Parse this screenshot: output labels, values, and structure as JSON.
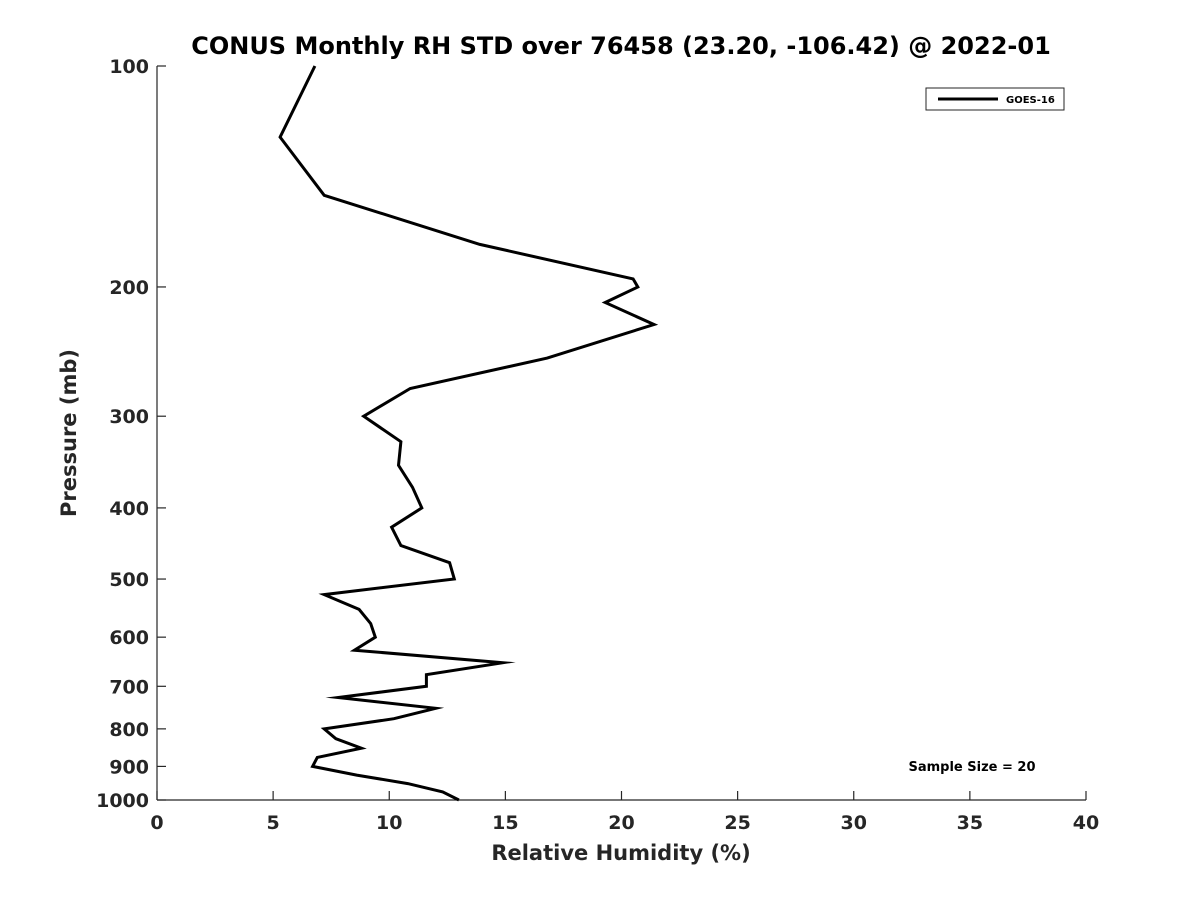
{
  "chart_data": {
    "type": "line",
    "title": "CONUS Monthly RH STD over 76458 (23.20, -106.42) @ 2022-01",
    "xlabel": "Relative Humidity (%)",
    "ylabel": "Pressure (mb)",
    "xlim": [
      0,
      40
    ],
    "ylim": [
      100,
      1000
    ],
    "yscale": "log",
    "y_reversed": true,
    "grid": false,
    "legend_position": "top-right",
    "xticks": [
      0,
      5,
      10,
      15,
      20,
      25,
      30,
      35,
      40
    ],
    "xtick_labels": [
      "0",
      "5",
      "10",
      "15",
      "20",
      "25",
      "30",
      "35",
      "40"
    ],
    "yticks": [
      100,
      200,
      300,
      400,
      500,
      600,
      700,
      800,
      900,
      1000
    ],
    "ytick_labels": [
      "100",
      "200",
      "300",
      "400",
      "500",
      "600",
      "700",
      "800",
      "900",
      "1000"
    ],
    "annotation": "Sample Size = 20",
    "series": [
      {
        "name": "GOES-16",
        "color": "#000000",
        "points": [
          [
            6.8,
            100
          ],
          [
            5.3,
            125
          ],
          [
            7.2,
            150
          ],
          [
            13.9,
            175
          ],
          [
            20.5,
            195
          ],
          [
            20.7,
            200
          ],
          [
            19.3,
            210
          ],
          [
            21.4,
            225
          ],
          [
            16.8,
            250
          ],
          [
            10.9,
            275
          ],
          [
            8.9,
            300
          ],
          [
            10.5,
            325
          ],
          [
            10.4,
            350
          ],
          [
            11.0,
            375
          ],
          [
            11.4,
            400
          ],
          [
            10.1,
            425
          ],
          [
            10.5,
            450
          ],
          [
            12.6,
            475
          ],
          [
            12.8,
            500
          ],
          [
            7.2,
            525
          ],
          [
            8.7,
            550
          ],
          [
            9.2,
            575
          ],
          [
            9.4,
            600
          ],
          [
            8.5,
            625
          ],
          [
            14.9,
            650
          ],
          [
            11.6,
            675
          ],
          [
            11.6,
            700
          ],
          [
            7.8,
            725
          ],
          [
            12.0,
            750
          ],
          [
            10.2,
            775
          ],
          [
            7.2,
            800
          ],
          [
            7.7,
            825
          ],
          [
            8.8,
            850
          ],
          [
            6.9,
            875
          ],
          [
            6.7,
            900
          ],
          [
            8.6,
            925
          ],
          [
            10.8,
            950
          ],
          [
            12.3,
            975
          ],
          [
            13.0,
            1000
          ]
        ]
      }
    ]
  }
}
